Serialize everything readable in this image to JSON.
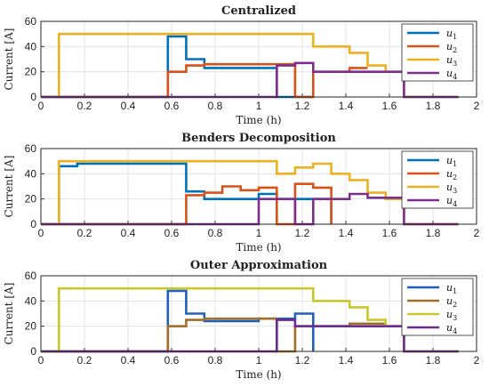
{
  "figure": {
    "panels": [
      {
        "title": "Centralized",
        "colors": [
          "#0072BD",
          "#D95319",
          "#EDB120",
          "#7E2F8E"
        ],
        "show_xlabel": true
      },
      {
        "title": "Benders Decomposition",
        "colors": [
          "#0072BD",
          "#D95319",
          "#EDB120",
          "#7E2F8E"
        ],
        "show_xlabel": true
      },
      {
        "title": "Outer Approximation",
        "colors": [
          "#1F5FBF",
          "#A0702A",
          "#C8C82A",
          "#6A2C8E"
        ],
        "show_xlabel": true
      }
    ]
  },
  "chart_data": [
    {
      "type": "line",
      "step": true,
      "title": "Centralized",
      "xlabel": "Time (h)",
      "ylabel": "Current [A]",
      "xlim": [
        0,
        2
      ],
      "ylim": [
        0,
        60
      ],
      "xticks": [
        "0",
        "0.2",
        "0.4",
        "0.6",
        "0.8",
        "1",
        "1.2",
        "1.4",
        "1.6",
        "1.8",
        "2"
      ],
      "yticks": [
        "0",
        "20",
        "40",
        "60"
      ],
      "grid": true,
      "legend_position": "top-right",
      "series": [
        {
          "name": "u1",
          "x": [
            0,
            0.583,
            0.583,
            0.667,
            0.667,
            0.75,
            0.75,
            1.083,
            1.083,
            1.25
          ],
          "y": [
            0,
            0,
            48,
            48,
            30,
            30,
            23,
            23,
            0,
            0
          ]
        },
        {
          "name": "u2",
          "x": [
            0,
            0.583,
            0.583,
            0.667,
            0.667,
            0.75,
            0.75,
            1.167,
            1.167,
            1.25,
            1.25,
            1.417,
            1.417,
            1.5
          ],
          "y": [
            0,
            0,
            20,
            20,
            25,
            25,
            26,
            26,
            0,
            0,
            20,
            20,
            23,
            23
          ]
        },
        {
          "name": "u3",
          "x": [
            0,
            0.083,
            0.083,
            1.25,
            1.25,
            1.417,
            1.417,
            1.5,
            1.5,
            1.583,
            1.583,
            1.667,
            1.667,
            1.917
          ],
          "y": [
            0,
            0,
            50,
            50,
            40,
            40,
            35,
            35,
            25,
            25,
            20,
            20,
            0,
            0
          ]
        },
        {
          "name": "u4",
          "x": [
            0,
            1.083,
            1.083,
            1.167,
            1.167,
            1.25,
            1.25,
            1.667,
            1.667,
            1.917
          ],
          "y": [
            0,
            0,
            25,
            25,
            27,
            27,
            20,
            20,
            0,
            0
          ]
        }
      ]
    },
    {
      "type": "line",
      "step": true,
      "title": "Benders Decomposition",
      "xlabel": "Time (h)",
      "ylabel": "Current [A]",
      "xlim": [
        0,
        2
      ],
      "ylim": [
        0,
        60
      ],
      "xticks": [
        "0",
        "0.2",
        "0.4",
        "0.6",
        "0.8",
        "1",
        "1.2",
        "1.4",
        "1.6",
        "1.8",
        "2"
      ],
      "yticks": [
        "0",
        "20",
        "40",
        "60"
      ],
      "grid": true,
      "legend_position": "top-right",
      "series": [
        {
          "name": "u1",
          "x": [
            0,
            0.083,
            0.083,
            0.167,
            0.167,
            0.667,
            0.667,
            0.75,
            0.75,
            1.0,
            1.0,
            1.083,
            1.083,
            1.333,
            1.333
          ],
          "y": [
            0,
            0,
            46,
            46,
            48,
            48,
            26,
            26,
            20,
            20,
            24,
            24,
            20,
            20,
            0
          ]
        },
        {
          "name": "u2",
          "x": [
            0,
            0.667,
            0.667,
            0.75,
            0.75,
            0.833,
            0.833,
            0.917,
            0.917,
            1.0,
            1.0,
            1.083,
            1.083,
            1.167,
            1.167,
            1.25,
            1.25,
            1.333,
            1.333
          ],
          "y": [
            0,
            0,
            23,
            23,
            25,
            25,
            30,
            30,
            27,
            27,
            29,
            29,
            0,
            0,
            32,
            32,
            29,
            29,
            0
          ]
        },
        {
          "name": "u3",
          "x": [
            0,
            0.083,
            0.083,
            1.083,
            1.083,
            1.167,
            1.167,
            1.25,
            1.25,
            1.333,
            1.333,
            1.417,
            1.417,
            1.5,
            1.5,
            1.583,
            1.583,
            1.667,
            1.667,
            1.917
          ],
          "y": [
            0,
            0,
            50,
            50,
            40,
            40,
            45,
            45,
            48,
            48,
            40,
            40,
            35,
            35,
            25,
            25,
            20,
            20,
            0,
            0
          ]
        },
        {
          "name": "u4",
          "x": [
            0,
            1.0,
            1.0,
            1.167,
            1.167,
            1.25,
            1.25,
            1.417,
            1.417,
            1.5,
            1.5,
            1.667,
            1.667,
            1.917
          ],
          "y": [
            0,
            0,
            20,
            20,
            0,
            0,
            20,
            20,
            24,
            24,
            21,
            21,
            0,
            0
          ]
        }
      ]
    },
    {
      "type": "line",
      "step": true,
      "title": "Outer Approximation",
      "xlabel": "Time (h)",
      "ylabel": "Current [A]",
      "xlim": [
        0,
        2
      ],
      "ylim": [
        0,
        60
      ],
      "xticks": [
        "0",
        "0.2",
        "0.4",
        "0.6",
        "0.8",
        "1",
        "1.2",
        "1.4",
        "1.6",
        "1.8",
        "2"
      ],
      "yticks": [
        "0",
        "20",
        "40",
        "60"
      ],
      "grid": true,
      "legend_position": "top-right",
      "series": [
        {
          "name": "u1",
          "x": [
            0,
            0.583,
            0.583,
            0.667,
            0.667,
            0.75,
            0.75,
            1.0,
            1.0,
            1.167,
            1.167,
            1.25,
            1.25
          ],
          "y": [
            0,
            0,
            48,
            48,
            30,
            30,
            24,
            24,
            26,
            26,
            30,
            30,
            0
          ]
        },
        {
          "name": "u2",
          "x": [
            0,
            0.583,
            0.583,
            0.667,
            0.667,
            0.75,
            0.75,
            1.083,
            1.083,
            1.167,
            1.167,
            1.25,
            1.25,
            1.417,
            1.417,
            1.583
          ],
          "y": [
            0,
            0,
            20,
            20,
            25,
            25,
            26,
            26,
            0,
            0,
            20,
            20,
            20,
            20,
            22,
            22
          ]
        },
        {
          "name": "u3",
          "x": [
            0,
            0.083,
            0.083,
            1.25,
            1.25,
            1.417,
            1.417,
            1.5,
            1.5,
            1.583,
            1.583,
            1.667,
            1.667,
            1.917
          ],
          "y": [
            0,
            0,
            50,
            50,
            40,
            40,
            35,
            35,
            25,
            25,
            20,
            20,
            0,
            0
          ]
        },
        {
          "name": "u4",
          "x": [
            0,
            1.083,
            1.083,
            1.167,
            1.167,
            1.25,
            1.25,
            1.667,
            1.667,
            1.917
          ],
          "y": [
            0,
            0,
            25,
            25,
            20,
            20,
            20,
            20,
            0,
            0
          ]
        }
      ]
    }
  ]
}
